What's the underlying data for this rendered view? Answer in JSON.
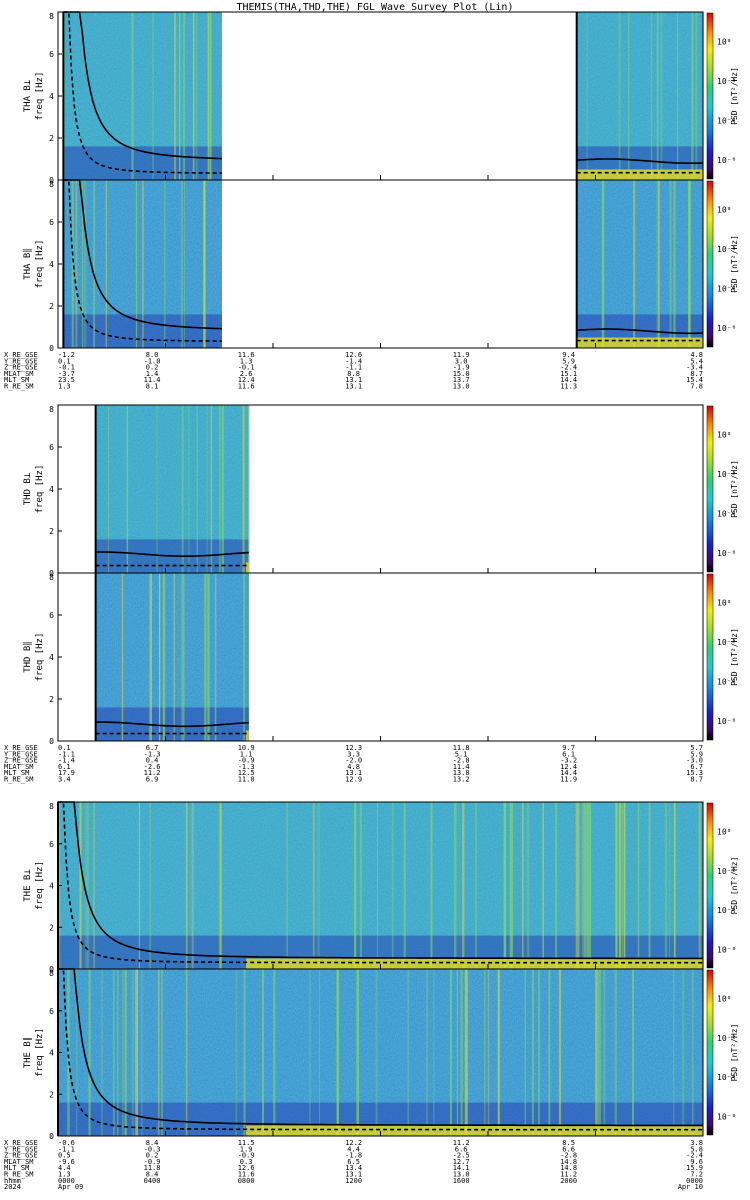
{
  "title": "THEMIS(THA,THD,THE) FGL Wave Survey Plot (Lin)",
  "colorbar": {
    "label": "PSD [nT²/Hz]",
    "ticks": [
      {
        "text": "10⁰",
        "log": 0
      },
      {
        "text": "10⁻²",
        "log": -2
      },
      {
        "text": "10⁻⁴",
        "log": -4
      },
      {
        "text": "10⁻⁶",
        "log": -6
      }
    ],
    "range": [
      -7,
      1.5
    ]
  },
  "colors": {
    "gap": "#ffffff",
    "frame": "#000000",
    "low": "#1a1aa0",
    "mid": "#20c0c0",
    "high": "#e01010"
  },
  "x_tick_times": [
    0,
    4,
    8,
    12,
    16,
    20,
    24
  ],
  "ephemeris_columns": [
    0,
    3.5,
    7,
    11,
    15,
    19,
    24
  ],
  "chart_data": [
    {
      "probe": "THA",
      "type": "heatmap",
      "ylim": [
        0,
        8
      ],
      "yticks": [
        "0",
        "2",
        "4",
        "6",
        "8"
      ],
      "panels": [
        {
          "ylabel": "THA B⊥",
          "ysub": "freq [Hz]",
          "ref": 0.9
        },
        {
          "ylabel": "THA B∥",
          "ysub": "freq [Hz]",
          "ref": 0.8
        }
      ],
      "data_segments": [
        [
          0.2,
          6.1
        ],
        [
          19.3,
          24
        ]
      ],
      "ephemeris": [
        {
          "label": "X_RE_GSE",
          "values": [
            "-1.2",
            "8.0",
            "11.6",
            "12.6",
            "11.9",
            "9.4",
            "4.8"
          ]
        },
        {
          "label": "Y_RE_GSE",
          "values": [
            "0.1",
            "-1.0",
            "1.3",
            "-1.4",
            "3.0",
            "5.9",
            "5.4"
          ]
        },
        {
          "label": "Z_RE_GSE",
          "values": [
            "-0.1",
            "0.2",
            "-0.1",
            "-1.1",
            "-1.9",
            "-2.4",
            "-3.4"
          ]
        },
        {
          "label": "MLAT_SM",
          "values": [
            "-3.7",
            "1.4",
            "2.6",
            "8.8",
            "15.0",
            "15.1",
            "8.7"
          ]
        },
        {
          "label": "MLT_SM",
          "values": [
            "23.5",
            "11.4",
            "12.4",
            "13.1",
            "13.7",
            "14.4",
            "15.4"
          ]
        },
        {
          "label": "R_RE_SM",
          "values": [
            "1.3",
            "8.1",
            "11.6",
            "13.1",
            "13.0",
            "11.3",
            "7.8"
          ]
        }
      ]
    },
    {
      "probe": "THD",
      "type": "heatmap",
      "ylim": [
        0,
        8
      ],
      "yticks": [
        "0",
        "2",
        "4",
        "6",
        "8"
      ],
      "panels": [
        {
          "ylabel": "THD B⊥",
          "ysub": "freq [Hz]",
          "ref": 0.9
        },
        {
          "ylabel": "THD B∥",
          "ysub": "freq [Hz]",
          "ref": 0.8
        }
      ],
      "data_segments": [
        [
          1.4,
          7.1
        ]
      ],
      "ephemeris": [
        {
          "label": "X_RE_GSE",
          "values": [
            "0.1",
            "6.7",
            "10.9",
            "12.3",
            "11.8",
            "9.7",
            "5.7"
          ]
        },
        {
          "label": "Y_RE_GSE",
          "values": [
            "-1.1",
            "-1.3",
            "1.1",
            "3.3",
            "5.1",
            "6.1",
            "5.9"
          ]
        },
        {
          "label": "Z_RE_GSE",
          "values": [
            "-1.4",
            "0.4",
            "-0.9",
            "-2.0",
            "-2.8",
            "-3.2",
            "-3.0"
          ]
        },
        {
          "label": "MLAT_SM",
          "values": [
            "6.1",
            "-2.6",
            "-1.3",
            "4.8",
            "11.4",
            "12.4",
            "6.7"
          ]
        },
        {
          "label": "MLT_SM",
          "values": [
            "17.9",
            "11.2",
            "12.5",
            "13.1",
            "13.8",
            "14.4",
            "15.3"
          ]
        },
        {
          "label": "R_RE_SM",
          "values": [
            "3.4",
            "6.9",
            "11.0",
            "12.9",
            "13.2",
            "11.9",
            "8.7"
          ]
        }
      ]
    },
    {
      "probe": "THE",
      "type": "heatmap",
      "ylim": [
        0,
        8
      ],
      "yticks": [
        "0",
        "2",
        "4",
        "6",
        "8"
      ],
      "panels": [
        {
          "ylabel": "THE B⊥",
          "ysub": "freq [Hz]",
          "ref": 0.5
        },
        {
          "ylabel": "THE B∥",
          "ysub": "freq [Hz]",
          "ref": 0.5
        }
      ],
      "data_segments": [
        [
          0,
          24
        ]
      ],
      "ephemeris": [
        {
          "label": "X_RE_GSE",
          "values": [
            "-0.6",
            "8.4",
            "11.5",
            "12.2",
            "11.2",
            "8.5",
            "3.8"
          ]
        },
        {
          "label": "Y_RE_GSE",
          "values": [
            "-1.1",
            "-0.3",
            "1.9",
            "4.4",
            "6.6",
            "6.6",
            "5.8"
          ]
        },
        {
          "label": "Z_RE_GSE",
          "values": [
            "0.5",
            "0.2",
            "-0.9",
            "-1.8",
            "-2.5",
            "-2.8",
            "-2.4"
          ]
        },
        {
          "label": "MLAT_SM",
          "values": [
            "-9.6",
            "-0.9",
            "0.3",
            "6.5",
            "12.7",
            "14.8",
            "9.6"
          ]
        },
        {
          "label": "MLT_SM",
          "values": [
            "4.4",
            "11.8",
            "12.6",
            "13.4",
            "14.1",
            "14.8",
            "15.9"
          ]
        },
        {
          "label": "R_RE_SM",
          "values": [
            "1.3",
            "8.4",
            "11.6",
            "13.1",
            "13.0",
            "11.2",
            "7.2"
          ]
        }
      ],
      "time_axis": [
        {
          "label": "hhmm",
          "values": [
            "0000",
            "0400",
            "0800",
            "1200",
            "1600",
            "2000",
            "0000"
          ]
        },
        {
          "label": "2024",
          "values": [
            "Apr 09",
            "",
            "",
            "",
            "",
            "",
            "Apr 10"
          ]
        }
      ]
    }
  ]
}
